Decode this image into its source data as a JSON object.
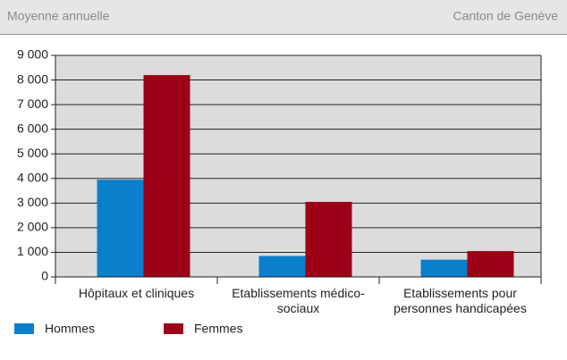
{
  "header": {
    "left": "Moyenne annuelle",
    "right": "Canton de Genève"
  },
  "chart_data": {
    "type": "bar",
    "categories": [
      "Hôpitaux et cliniques",
      "Etablissements médico-sociaux",
      "Etablissements pour personnes handicapées"
    ],
    "series": [
      {
        "name": "Hommes",
        "color": "#0a7fcb",
        "values": [
          3950,
          850,
          700
        ]
      },
      {
        "name": "Femmes",
        "color": "#9c0016",
        "values": [
          8200,
          3050,
          1050
        ]
      }
    ],
    "ylim": [
      0,
      9000
    ],
    "yticks": [
      0,
      {
        "value": 1000,
        "label": "1 000"
      },
      {
        "value": 2000,
        "label": "2 000"
      },
      {
        "value": 3000,
        "label": "3 000"
      },
      {
        "value": 4000,
        "label": "4 000"
      },
      {
        "value": 5000,
        "label": "5 000"
      },
      {
        "value": 6000,
        "label": "6 000"
      },
      {
        "value": 7000,
        "label": "7 000"
      },
      {
        "value": 8000,
        "label": "8 000"
      },
      {
        "value": 9000,
        "label": "9 000"
      }
    ],
    "grid": true
  }
}
